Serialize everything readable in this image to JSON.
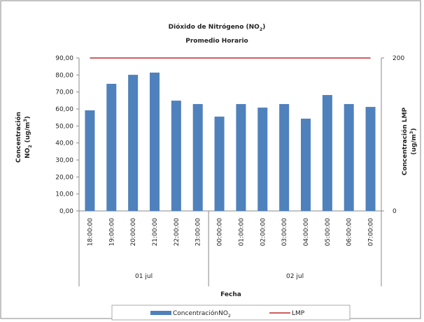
{
  "chart_data": {
    "type": "bar",
    "title": "Dióxido de Nitrógeno (NO2)",
    "subtitle": "Promedio Horario",
    "xlabel": "Fecha",
    "ylabel": [
      "Concentración",
      "NO2 (ug/m3)"
    ],
    "y2label": [
      "Concentración LMP",
      "(ug/m3)"
    ],
    "categories": [
      "18:00:00",
      "19:00:00",
      "20:00:00",
      "21:00:00",
      "22:00:00",
      "23:00:00",
      "00:00:00",
      "01:00:00",
      "02:00:00",
      "03:00:00",
      "04:00:00",
      "05:00:00",
      "06:00:00",
      "07:00:00"
    ],
    "groups": [
      {
        "label": "01 jul",
        "count": 6
      },
      {
        "label": "02 jul",
        "count": 8
      }
    ],
    "series": [
      {
        "name": "ConcentraciónNO2",
        "color": "#4f81bd",
        "values": [
          59.2,
          74.8,
          80.1,
          81.4,
          64.9,
          62.9,
          55.5,
          62.9,
          60.8,
          62.9,
          54.3,
          68.2,
          62.9,
          61.2
        ]
      },
      {
        "name": "LMP",
        "color": "#c0282d",
        "axis": "y2",
        "type": "line",
        "values": [
          200,
          200,
          200,
          200,
          200,
          200,
          200,
          200,
          200,
          200,
          200,
          200,
          200,
          200
        ]
      }
    ],
    "ylim": [
      0,
      90
    ],
    "yticks": [
      {
        "value": 0,
        "label": "0,00"
      },
      {
        "value": 10,
        "label": "10,00"
      },
      {
        "value": 20,
        "label": "20,00"
      },
      {
        "value": 30,
        "label": "30,00"
      },
      {
        "value": 40,
        "label": "40,00"
      },
      {
        "value": 50,
        "label": "50,00"
      },
      {
        "value": 60,
        "label": "60,00"
      },
      {
        "value": 70,
        "label": "70,00"
      },
      {
        "value": 80,
        "label": "80,00"
      },
      {
        "value": 90,
        "label": "90,00"
      }
    ],
    "y2lim": [
      0,
      200
    ],
    "y2ticks": [
      0,
      200
    ],
    "grid": false,
    "legend": "bottom"
  }
}
